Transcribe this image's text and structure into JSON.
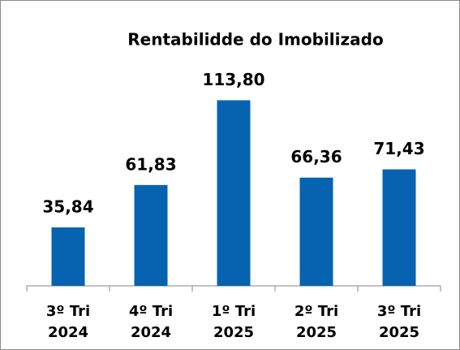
{
  "chart_data": {
    "type": "bar",
    "title": "Rentabilidde do Imobilizado",
    "categories": [
      [
        "3º Tri",
        "2024"
      ],
      [
        "4º Tri",
        "2024"
      ],
      [
        "1º Tri",
        "2025"
      ],
      [
        "2º Tri",
        "2025"
      ],
      [
        "3º Tri",
        "2025"
      ]
    ],
    "values": [
      35.84,
      61.83,
      113.8,
      66.36,
      71.43
    ],
    "value_labels": [
      "35,84",
      "61,83",
      "113,80",
      "66,36",
      "71,43"
    ],
    "color": "#0563b0",
    "ylim": [
      0,
      120
    ]
  }
}
